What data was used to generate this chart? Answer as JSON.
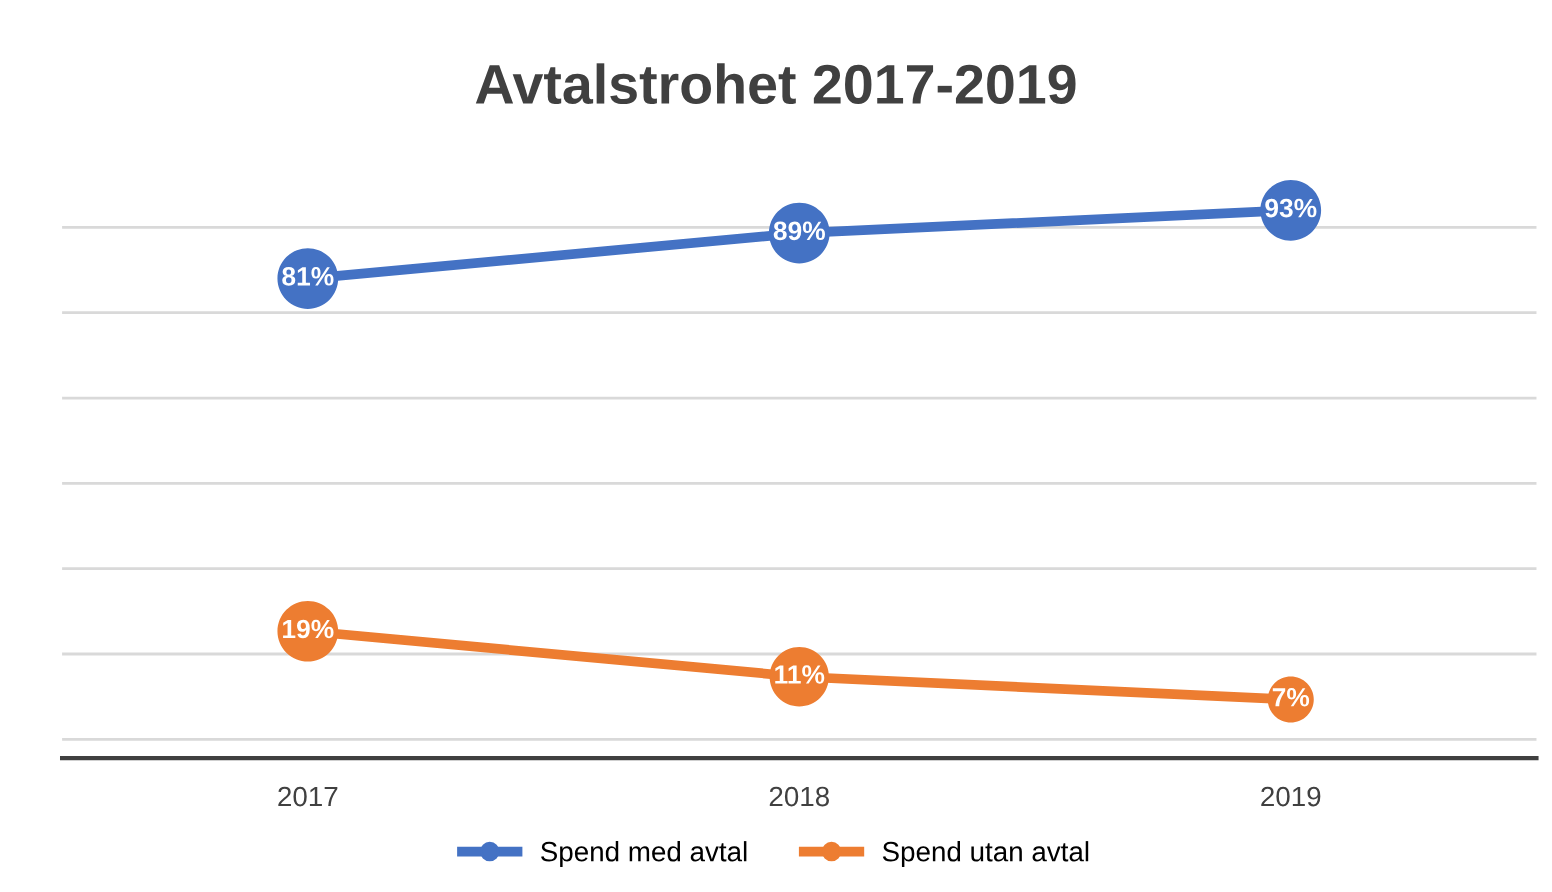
{
  "chart_data": {
    "type": "line",
    "title": "Avtalstrohet 2017-2019",
    "categories": [
      "2017",
      "2018",
      "2019"
    ],
    "series": [
      {
        "name": "Spend med avtal",
        "color": "#4472c4",
        "values": [
          81,
          89,
          93
        ],
        "value_labels": [
          "81%",
          "89%",
          "93%"
        ]
      },
      {
        "name": "Spend utan avtal",
        "color": "#ed7d31",
        "values": [
          19,
          11,
          7
        ],
        "value_labels": [
          "19%",
          "11%",
          "7%"
        ]
      }
    ],
    "tick_labels": "x",
    "grid": "y",
    "legend": "bottom",
    "marker": "circle",
    "line_style": "solid"
  }
}
